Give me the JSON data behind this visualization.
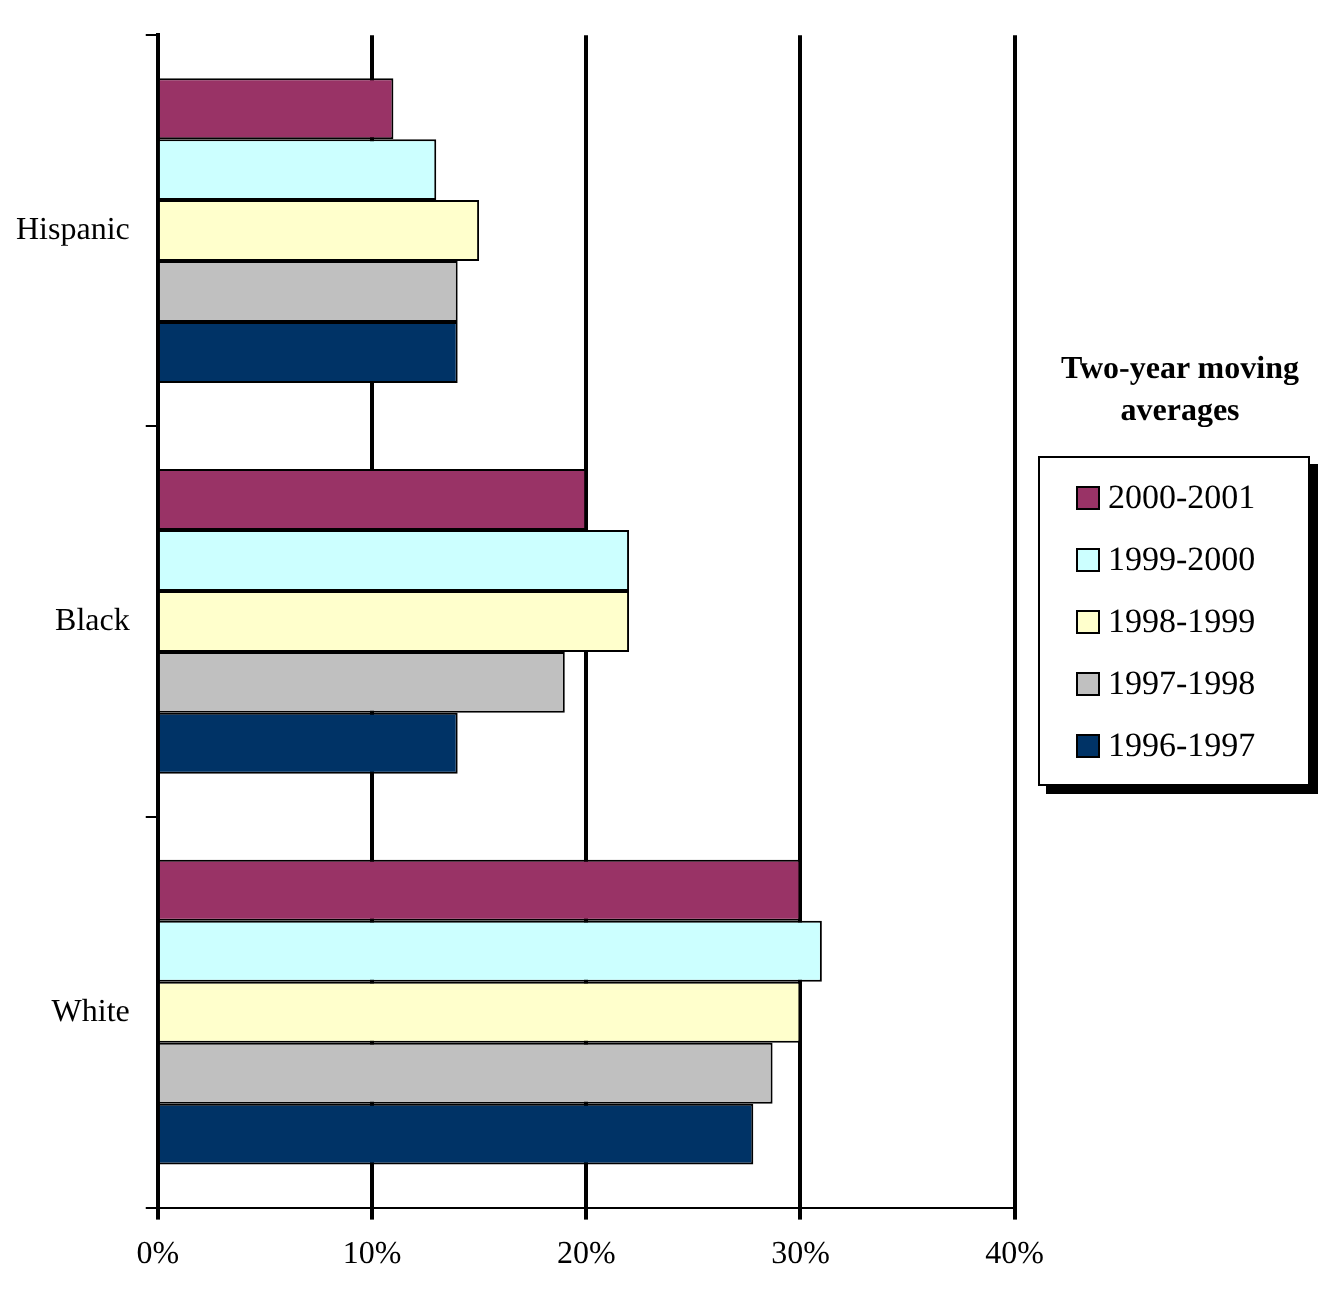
{
  "chart_data": {
    "type": "bar",
    "orientation": "horizontal",
    "legend_title": "Two-year moving averages",
    "legend": "right",
    "categories": [
      "Hispanic",
      "Black",
      "White"
    ],
    "series": [
      {
        "name": "2000-2001",
        "color": "#993366",
        "values": [
          11,
          20,
          30
        ]
      },
      {
        "name": "1999-2000",
        "color": "#ccffff",
        "values": [
          13,
          22,
          31
        ]
      },
      {
        "name": "1998-1999",
        "color": "#ffffcc",
        "values": [
          15,
          22,
          30
        ]
      },
      {
        "name": "1997-1998",
        "color": "#c0c0c0",
        "values": [
          14,
          19,
          28.7
        ]
      },
      {
        "name": "1996-1997",
        "color": "#003366",
        "values": [
          14,
          14,
          27.8
        ]
      }
    ],
    "xlim": [
      0,
      40
    ],
    "xticks": [
      {
        "value": 0,
        "label": "0%"
      },
      {
        "value": 10,
        "label": "10%"
      },
      {
        "value": 20,
        "label": "20%"
      },
      {
        "value": 30,
        "label": "30%"
      },
      {
        "value": 40,
        "label": "40%"
      }
    ],
    "grid": "x"
  }
}
